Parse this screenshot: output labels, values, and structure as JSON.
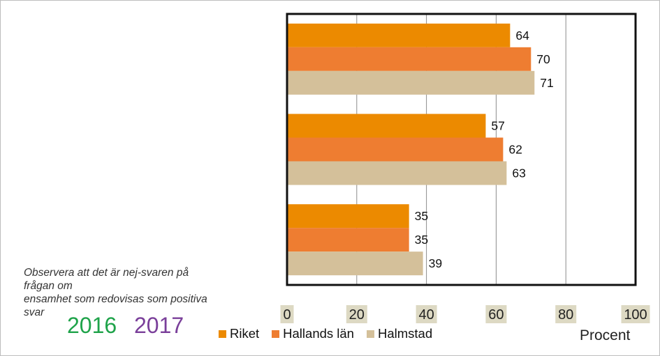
{
  "note": {
    "lines": [
      "Observera att det är nej-svaren på",
      "frågan om",
      "ensamhet som redovisas som positiva",
      "svar"
    ]
  },
  "years": [
    {
      "label": "2016",
      "color": "#1fa34a"
    },
    {
      "label": "2017",
      "color": "#7a3f9a"
    }
  ],
  "unit_label": "Procent",
  "chart_data": {
    "type": "bar",
    "orientation": "horizontal",
    "categories": [
      "",
      "",
      ""
    ],
    "series": [
      {
        "name": "Riket",
        "color": "#ec8a00",
        "values": [
          64,
          57,
          35
        ]
      },
      {
        "name": "Hallands län",
        "color": "#ee7d31",
        "values": [
          70,
          62,
          35
        ]
      },
      {
        "name": "Halmstad",
        "color": "#d4c09a",
        "values": [
          71,
          63,
          39
        ]
      }
    ],
    "xlim": [
      0,
      100
    ],
    "xticks": [
      "0",
      "20",
      "40",
      "60",
      "80",
      "100"
    ],
    "xlabel": "Procent",
    "grid": true,
    "legend_position": "bottom",
    "tick_label_background": "#ddd9c3"
  }
}
